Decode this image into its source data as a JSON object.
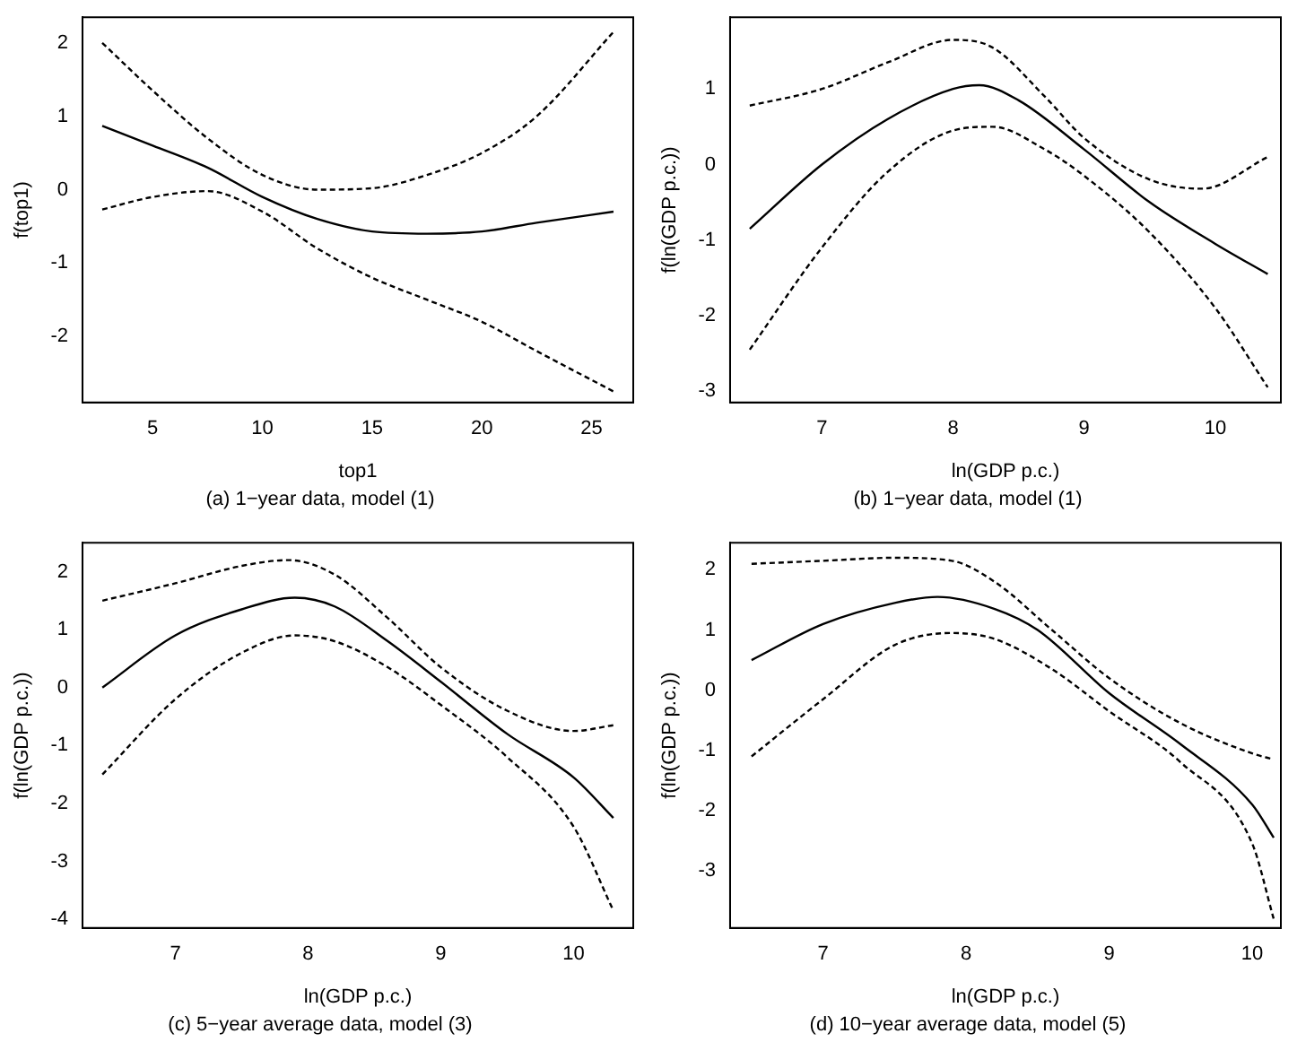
{
  "chart_data": [
    {
      "type": "line",
      "title": "(a) 1−year data, model (1)",
      "xlabel": "top1",
      "ylabel": "f(top1)",
      "xlim": [
        1.8,
        26.9
      ],
      "ylim": [
        -2.9,
        2.35
      ],
      "xticks": [
        5,
        10,
        15,
        20,
        25
      ],
      "yticks": [
        -2,
        -1,
        0,
        1,
        2
      ],
      "grid": false,
      "legend": false,
      "series": [
        {
          "color": "#000000",
          "line_style": "solid",
          "x": [
            2.7,
            5,
            7.5,
            10,
            12.5,
            15,
            17.5,
            20,
            22.5,
            26
          ],
          "values": [
            0.87,
            0.6,
            0.3,
            -0.1,
            -0.4,
            -0.57,
            -0.6,
            -0.57,
            -0.45,
            -0.3
          ]
        },
        {
          "color": "#000000",
          "line_style": "dashed",
          "x": [
            2.7,
            5,
            7.5,
            10,
            12.5,
            15,
            17.5,
            20,
            22.5,
            26
          ],
          "values": [
            2.0,
            1.35,
            0.7,
            0.2,
            0.0,
            0.02,
            0.2,
            0.5,
            1.0,
            2.15
          ]
        },
        {
          "color": "#000000",
          "line_style": "dashed",
          "x": [
            2.7,
            5,
            7.5,
            10,
            12.5,
            15,
            17.5,
            20,
            22.5,
            26
          ],
          "values": [
            -0.27,
            -0.1,
            -0.02,
            -0.3,
            -0.8,
            -1.2,
            -1.5,
            -1.8,
            -2.2,
            -2.75
          ]
        }
      ]
    },
    {
      "type": "line",
      "title": "(b) 1−year data, model (1)",
      "xlabel": "ln(GDP p.c.)",
      "ylabel": "f(ln(GDP p.c.))",
      "xlim": [
        6.3,
        10.5
      ],
      "ylim": [
        -3.15,
        1.95
      ],
      "xticks": [
        7,
        8,
        9,
        10
      ],
      "yticks": [
        -3,
        -2,
        -1,
        0,
        1
      ],
      "grid": false,
      "legend": false,
      "series": [
        {
          "color": "#000000",
          "line_style": "solid",
          "x": [
            6.45,
            7,
            7.5,
            8,
            8.2,
            8.5,
            9,
            9.5,
            10,
            10.4
          ],
          "values": [
            -0.85,
            0,
            0.6,
            1.0,
            1.05,
            0.85,
            0.2,
            -0.5,
            -1.05,
            -1.45
          ]
        },
        {
          "color": "#000000",
          "line_style": "dashed",
          "x": [
            6.45,
            7,
            7.5,
            8,
            8.3,
            8.7,
            9,
            9.5,
            9.9,
            10.4
          ],
          "values": [
            0.78,
            1.0,
            1.35,
            1.65,
            1.55,
            0.9,
            0.35,
            -0.2,
            -0.32,
            0.1
          ]
        },
        {
          "color": "#000000",
          "line_style": "dashed",
          "x": [
            6.45,
            7,
            7.5,
            8,
            8.3,
            8.7,
            9,
            9.5,
            10,
            10.4
          ],
          "values": [
            -2.45,
            -1.1,
            -0.1,
            0.45,
            0.5,
            0.2,
            -0.15,
            -0.9,
            -1.9,
            -2.95
          ]
        }
      ]
    },
    {
      "type": "line",
      "title": "(c) 5−year average data, model (3)",
      "xlabel": "ln(GDP p.c.)",
      "ylabel": "f(ln(GDP p.c.))",
      "xlim": [
        6.3,
        10.45
      ],
      "ylim": [
        -4.15,
        2.5
      ],
      "xticks": [
        7,
        8,
        9,
        10
      ],
      "yticks": [
        -4,
        -3,
        -2,
        -1,
        0,
        1,
        2
      ],
      "grid": false,
      "legend": false,
      "series": [
        {
          "color": "#000000",
          "line_style": "solid",
          "x": [
            6.45,
            7,
            7.5,
            7.9,
            8.2,
            8.6,
            9,
            9.5,
            10,
            10.3
          ],
          "values": [
            0,
            0.9,
            1.35,
            1.55,
            1.4,
            0.8,
            0.1,
            -0.8,
            -1.55,
            -2.25
          ]
        },
        {
          "color": "#000000",
          "line_style": "dashed",
          "x": [
            6.45,
            7,
            7.5,
            7.85,
            8.2,
            8.6,
            9,
            9.5,
            10,
            10.3
          ],
          "values": [
            1.5,
            1.8,
            2.1,
            2.2,
            1.95,
            1.2,
            0.35,
            -0.4,
            -0.75,
            -0.65
          ]
        },
        {
          "color": "#000000",
          "line_style": "dashed",
          "x": [
            6.45,
            7,
            7.5,
            7.9,
            8.2,
            8.6,
            9,
            9.5,
            10,
            10.3
          ],
          "values": [
            -1.5,
            -0.2,
            0.6,
            0.9,
            0.8,
            0.35,
            -0.3,
            -1.2,
            -2.4,
            -3.85
          ]
        }
      ]
    },
    {
      "type": "line",
      "title": "(d) 10−year average data, model (5)",
      "xlabel": "ln(GDP p.c.)",
      "ylabel": "f(ln(GDP p.c.))",
      "xlim": [
        6.35,
        10.2
      ],
      "ylim": [
        -3.95,
        2.45
      ],
      "xticks": [
        7,
        8,
        9,
        10
      ],
      "yticks": [
        -3,
        -2,
        -1,
        0,
        1,
        2
      ],
      "grid": false,
      "legend": false,
      "series": [
        {
          "color": "#000000",
          "line_style": "solid",
          "x": [
            6.5,
            7,
            7.5,
            7.8,
            8.2,
            8.5,
            9,
            9.5,
            10,
            10.15
          ],
          "values": [
            0.5,
            1.1,
            1.45,
            1.55,
            1.35,
            1.0,
            -0.05,
            -0.9,
            -1.9,
            -2.45
          ]
        },
        {
          "color": "#000000",
          "line_style": "dashed",
          "x": [
            6.5,
            7,
            7.5,
            7.9,
            8.2,
            8.6,
            9,
            9.5,
            10,
            10.15
          ],
          "values": [
            2.1,
            2.15,
            2.2,
            2.15,
            1.8,
            1.0,
            0.2,
            -0.55,
            -1.05,
            -1.15
          ]
        },
        {
          "color": "#000000",
          "line_style": "dashed",
          "x": [
            6.5,
            7,
            7.5,
            7.9,
            8.2,
            8.6,
            9,
            9.5,
            10,
            10.15
          ],
          "values": [
            -1.1,
            -0.15,
            0.75,
            0.95,
            0.85,
            0.35,
            -0.35,
            -1.2,
            -2.55,
            -3.8
          ]
        }
      ]
    }
  ]
}
